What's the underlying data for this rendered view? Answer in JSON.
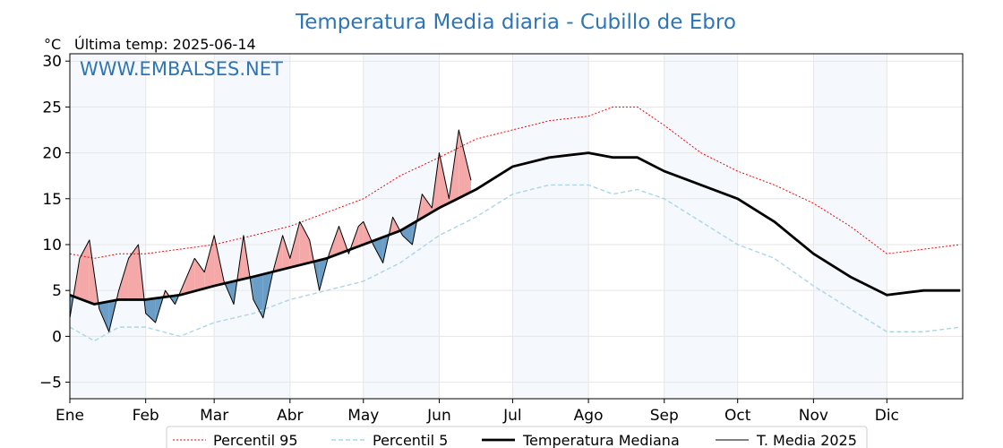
{
  "chart_data": {
    "type": "line",
    "title": "Temperatura Media diaria - Cubillo de Ebro",
    "unit_label": "°C",
    "last_temp_label": "Última temp: 2025-06-14",
    "watermark": "WWW.EMBALSES.NET",
    "y_ticks": [
      -5,
      0,
      5,
      10,
      15,
      20,
      25,
      30
    ],
    "ylim": [
      -6.8,
      30.8
    ],
    "xlim_days": [
      0,
      365
    ],
    "months": [
      "Ene",
      "Feb",
      "Mar",
      "Abr",
      "May",
      "Jun",
      "Jul",
      "Ago",
      "Sep",
      "Oct",
      "Nov",
      "Dic"
    ],
    "month_start_days": [
      0,
      31,
      59,
      90,
      120,
      151,
      181,
      212,
      243,
      273,
      304,
      334
    ],
    "series": [
      {
        "name": "Percentil 95",
        "color": "#ff0000",
        "style": "dotted",
        "x": [
          0,
          10,
          20,
          31,
          45,
          59,
          75,
          90,
          105,
          120,
          135,
          151,
          166,
          181,
          196,
          212,
          222,
          232,
          243,
          258,
          273,
          288,
          304,
          319,
          334,
          349,
          364
        ],
        "y": [
          9,
          8.5,
          9,
          9,
          9.5,
          10,
          11,
          12,
          13.5,
          15,
          17.5,
          19.5,
          21.5,
          22.5,
          23.5,
          24,
          25,
          25,
          23,
          20,
          18,
          16.5,
          14.5,
          12,
          9,
          9.5,
          10
        ]
      },
      {
        "name": "Percentil 5",
        "color": "#a9d7e6",
        "style": "dashed",
        "x": [
          0,
          10,
          20,
          31,
          45,
          59,
          75,
          90,
          105,
          120,
          135,
          151,
          166,
          181,
          196,
          212,
          222,
          232,
          243,
          258,
          273,
          288,
          304,
          319,
          334,
          349,
          364
        ],
        "y": [
          1,
          -0.5,
          1,
          1,
          0,
          1.5,
          2.5,
          4,
          5,
          6,
          8,
          11,
          13,
          15.5,
          16.5,
          16.5,
          15.5,
          16,
          15,
          12.5,
          10,
          8.5,
          5.5,
          3,
          0.5,
          0.5,
          1
        ]
      },
      {
        "name": "Temperatura Mediana",
        "color": "#000000",
        "style": "bold",
        "x": [
          0,
          10,
          20,
          31,
          45,
          59,
          75,
          90,
          105,
          120,
          135,
          151,
          166,
          181,
          196,
          212,
          222,
          232,
          243,
          258,
          273,
          288,
          304,
          319,
          334,
          349,
          364
        ],
        "y": [
          4.5,
          3.5,
          4,
          4,
          4.5,
          5.5,
          6.5,
          7.5,
          8.5,
          10,
          11.5,
          14,
          16,
          18.5,
          19.5,
          20,
          19.5,
          19.5,
          18,
          16.5,
          15,
          12.5,
          9,
          6.5,
          4.5,
          5,
          5
        ]
      },
      {
        "name": "T. Media 2025",
        "color": "#000000",
        "style": "thin",
        "x": [
          0,
          4,
          8,
          12,
          16,
          20,
          24,
          28,
          31,
          35,
          39,
          43,
          47,
          51,
          55,
          59,
          63,
          67,
          71,
          75,
          79,
          83,
          87,
          90,
          94,
          98,
          102,
          106,
          110,
          114,
          118,
          120,
          124,
          128,
          132,
          136,
          140,
          144,
          148,
          151,
          155,
          159,
          164
        ],
        "y": [
          2,
          8.5,
          10.5,
          3,
          0.5,
          5,
          8.5,
          10,
          2.5,
          1.5,
          5,
          3.5,
          6,
          8.5,
          7,
          11,
          6,
          3.5,
          11,
          4,
          2,
          7,
          11,
          8.5,
          12.5,
          10.5,
          5,
          9,
          12,
          9,
          12,
          12.5,
          10,
          8,
          13,
          11,
          10,
          15.5,
          14,
          20,
          15,
          22.5,
          17
        ]
      }
    ],
    "legend": {
      "position": "bottom",
      "entries": [
        "Percentil 95",
        "Percentil 5",
        "Temperatura Mediana",
        "T. Media 2025"
      ]
    },
    "fill_colors": {
      "above": "#f4a9a8",
      "below": "#6a9ec7"
    },
    "band_color": "#f5f9fd",
    "grid": true
  }
}
